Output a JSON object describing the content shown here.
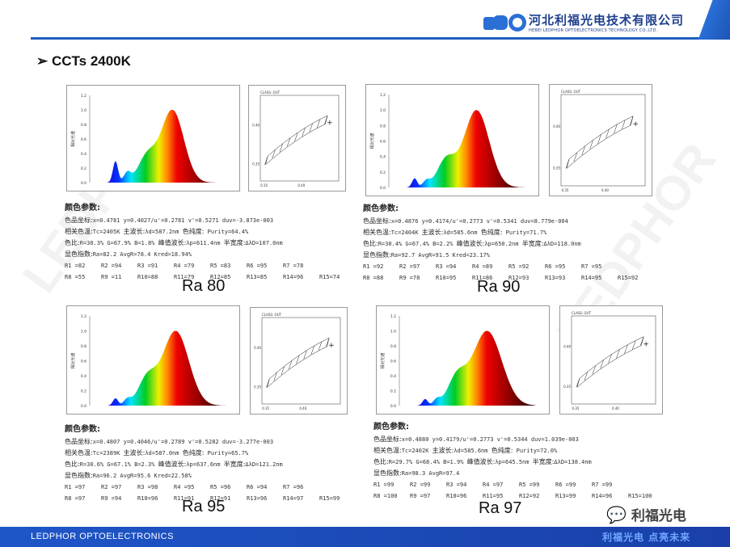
{
  "header": {
    "company_cn": "河北利福光电技术有限公司",
    "company_en": "HEBEI LEDPHOR OPTOELECTRONICS TECHNOLOGY CO.,LTD.",
    "accent": "#1f5fbf"
  },
  "title": "CCTs 2400K",
  "spectrum_axis": {
    "y_label": "相对光谱",
    "y_ticks": [
      "0.0",
      "0.2",
      "0.4",
      "0.6",
      "0.8",
      "1.0",
      "1.2"
    ]
  },
  "cie_axis": {
    "label": "CLASS: OUT",
    "x_ticks": [
      "0.35",
      "0.40"
    ],
    "y_ticks": [
      "0.35",
      "0.40"
    ]
  },
  "panels": [
    {
      "ra_label": "Ra 80",
      "heading": "颜色参数:",
      "l1_cn": "色品坐标:",
      "l1": "x=0.4781  y=0.4027/u'=0.2781  v'=0.5271   duv=-3.873e-003",
      "l2a_cn": "相关色温:",
      "l2a": "Tc=2405K ",
      "l2b_cn": "主波长:",
      "l2b": "λd=587.2nm ",
      "l2c_cn": "色纯度:",
      "l2c": " Purity=64.4%",
      "l3a_cn": "色比:",
      "l3a": "R=30.3% G=67.9% B=1.8% ",
      "l3b_cn": "峰值波长:",
      "l3b": "λp=611.4nm ",
      "l3c_cn": "半宽度:",
      "l3c": "ΔλD=107.0nm",
      "l4_cn": "显色指数:",
      "l4": "Ra=82.2  AvgR=78.4  Kred=18.94%",
      "r": [
        "R1 =82",
        "R2 =94",
        "R3 =91",
        "R4 =79",
        "R5 =83",
        "R6 =95",
        "R7 =78",
        "R8 =55",
        "R9 =11",
        "R10=88",
        "R11=79",
        "R12=85",
        "R13=85",
        "R14=96",
        "R15=74"
      ]
    },
    {
      "ra_label": "Ra 90",
      "heading": "颜色参数:",
      "l1_cn": "色品坐标:",
      "l1": "x=0.4876  y=0.4174/u'=0.2773  v'=0.5341   duv=8.779e-004",
      "l2a_cn": "相关色温:",
      "l2a": "Tc=2404K ",
      "l2b_cn": "主波长:",
      "l2b": "λd=585.6nm ",
      "l2c_cn": "色纯度:",
      "l2c": " Purity=71.7%",
      "l3a_cn": "色比:",
      "l3a": "R=30.4% G=67.4% B=2.2% ",
      "l3b_cn": "峰值波长:",
      "l3b": "λp=650.2nm ",
      "l3c_cn": "半宽度:",
      "l3c": "ΔλD=118.0nm",
      "l4_cn": "显色指数:",
      "l4": "Ra=92.7  AvgR=91.5  Kred=23.17%",
      "r": [
        "R1 =92",
        "R2 =97",
        "R3 =94",
        "R4 =89",
        "R5 =92",
        "R6 =95",
        "R7 =95",
        "R8 =88",
        "R9 =78",
        "R10=95",
        "R11=86",
        "R12=93",
        "R13=93",
        "R14=95",
        "R15=92"
      ]
    },
    {
      "ra_label": "Ra 95",
      "heading": "颜色参数:",
      "l1_cn": "色品坐标:",
      "l1": "x=0.4807  y=0.4046/u'=0.2789  v'=0.5282   duv=-3.277e-003",
      "l2a_cn": "相关色温:",
      "l2a": "Tc=2389K ",
      "l2b_cn": "主波长:",
      "l2b": "λd=587.0nm ",
      "l2c_cn": "色纯度:",
      "l2c": " Purity=65.7%",
      "l3a_cn": "色比:",
      "l3a": "R=30.6% G=67.1% B=2.3% ",
      "l3b_cn": "峰值波长:",
      "l3b": "λp=637.6nm ",
      "l3c_cn": "半宽度:",
      "l3c": "ΔλD=121.2nm",
      "l4_cn": "显色指数:",
      "l4": "Ra=96.2  AvgR=95.6  Kred=22.58%",
      "r": [
        "R1 =97",
        "R2 =97",
        "R3 =98",
        "R4 =95",
        "R5 =96",
        "R6 =94",
        "R7 =96",
        "R8 =97",
        "R9 =94",
        "R10=96",
        "R11=91",
        "R12=91",
        "R13=96",
        "R14=97",
        "R15=99"
      ]
    },
    {
      "ra_label": "Ra 97",
      "heading": "颜色参数:",
      "l1_cn": "色品坐标:",
      "l1": "x=0.4880  y=0.4179/u'=0.2773  v'=0.5344   duv=1.039e-003",
      "l2a_cn": "相关色温:",
      "l2a": "Tc=2402K ",
      "l2b_cn": "主波长:",
      "l2b": "λd=585.6nm ",
      "l2c_cn": "色纯度:",
      "l2c": " Purity=72.0%",
      "l3a_cn": "色比:",
      "l3a": "R=29.7% G=68.4% B=1.9% ",
      "l3b_cn": "峰值波长:",
      "l3b": "λp=645.5nm ",
      "l3c_cn": "半宽度:",
      "l3c": "ΔλD=138.4nm",
      "l4_cn": "显色指数:",
      "l4": "Ra=98.3  AvgR=97.4",
      "r": [
        "R1 =99",
        "R2 =99",
        "R3 =94",
        "R4 =97",
        "R5 =99",
        "R6 =99",
        "R7 =99",
        "R8 =100",
        "R9 =97",
        "R10=96",
        "R11=95",
        "R12=92",
        "R13=99",
        "R14=96",
        "R15=100"
      ]
    }
  ],
  "wechat": {
    "label": "利福光电"
  },
  "footer": {
    "left": "LEDPHOR OPTOELECTRONICS",
    "right": "利福光电  点亮未来"
  },
  "watermark": "LEDPHOR"
}
